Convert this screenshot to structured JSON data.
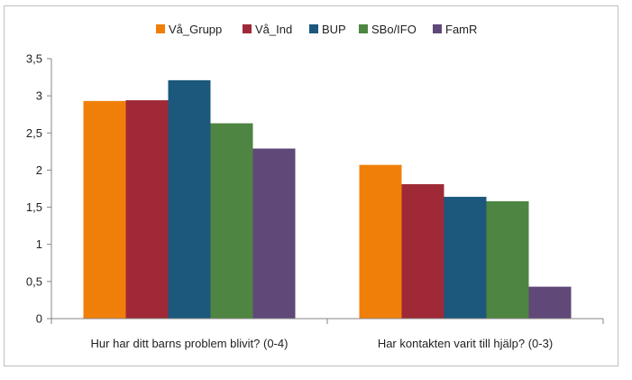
{
  "chart_data": {
    "type": "bar",
    "categories": [
      "Hur har ditt barns problem blivit? (0-4)",
      "Har kontakten varit till hjälp? (0-3)"
    ],
    "series": [
      {
        "name": "Vå_Grupp",
        "color": "#f07f09",
        "values": [
          2.93,
          2.07
        ]
      },
      {
        "name": "Vå_Ind",
        "color": "#9f2936",
        "values": [
          2.94,
          1.81
        ]
      },
      {
        "name": "BUP",
        "color": "#1b587c",
        "values": [
          3.21,
          1.64
        ]
      },
      {
        "name": "SBo/IFO",
        "color": "#4e8542",
        "values": [
          2.63,
          1.58
        ]
      },
      {
        "name": "FamR",
        "color": "#604878",
        "values": [
          2.29,
          0.43
        ]
      }
    ],
    "ylim": [
      0,
      3.5
    ],
    "yticks": [
      "0",
      "0,5",
      "1",
      "1,5",
      "2",
      "2,5",
      "3",
      "3,5"
    ],
    "grid": false,
    "legend_position": "top",
    "title": "",
    "xlabel": "",
    "ylabel": ""
  }
}
